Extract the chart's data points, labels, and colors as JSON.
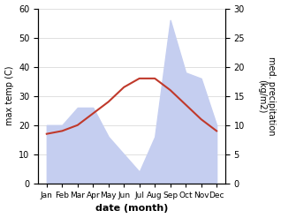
{
  "months": [
    "Jan",
    "Feb",
    "Mar",
    "Apr",
    "May",
    "Jun",
    "Jul",
    "Aug",
    "Sep",
    "Oct",
    "Nov",
    "Dec"
  ],
  "max_temp": [
    17,
    18,
    20,
    24,
    28,
    33,
    36,
    36,
    32,
    27,
    22,
    18
  ],
  "precipitation": [
    10,
    10,
    13,
    13,
    8,
    5,
    2,
    8,
    28,
    19,
    18,
    10
  ],
  "temp_color": "#c0392b",
  "precip_fill_color": "#c5cef0",
  "temp_ylim": [
    0,
    60
  ],
  "precip_ylim": [
    0,
    30
  ],
  "temp_yticks": [
    0,
    10,
    20,
    30,
    40,
    50,
    60
  ],
  "precip_yticks": [
    0,
    5,
    10,
    15,
    20,
    25,
    30
  ],
  "xlabel": "date (month)",
  "ylabel_left": "max temp (C)",
  "ylabel_right": "med. precipitation\n(kg/m2)",
  "background_color": "#ffffff"
}
